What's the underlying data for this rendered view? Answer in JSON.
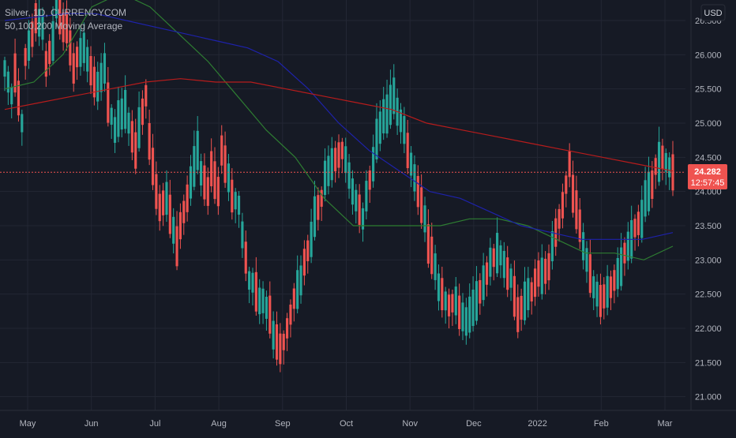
{
  "legend": {
    "symbol_line": "Silver, 1D, CURRENCYCOM",
    "indicator_line": "50,100,200 Moving Average"
  },
  "price_axis": {
    "currency": "USD",
    "ticks": [
      "26.500",
      "26.000",
      "25.500",
      "25.000",
      "24.500",
      "24.000",
      "23.500",
      "23.000",
      "22.500",
      "22.000",
      "21.500",
      "21.000"
    ]
  },
  "last_price": {
    "value": "24.282",
    "countdown": "12:57:45"
  },
  "colors": {
    "background": "#161a25",
    "grid": "#232734",
    "up": "#26a69a",
    "down": "#ef5350",
    "ma50": "#2e7d32",
    "ma100": "#1e22aa",
    "ma200": "#b71c1c",
    "axis_text": "#b2b5be",
    "last_price_label": "#ef5350"
  },
  "chart_data": {
    "type": "candlestick",
    "title": "Silver, 1D, CURRENCYCOM",
    "x_axis_labels": [
      "May",
      "Jun",
      "Jul",
      "Aug",
      "Sep",
      "Oct",
      "Nov",
      "Dec",
      "2022",
      "Feb",
      "Mar"
    ],
    "ylim": [
      20.8,
      26.8
    ],
    "grid": true,
    "anchor_points": [
      [
        26.0,
        25.4
      ],
      [
        26.1,
        25.0
      ],
      [
        25.8,
        26.3
      ],
      [
        26.6,
        26.4
      ],
      [
        25.7,
        26.2
      ],
      [
        26.9,
        26.4
      ],
      [
        26.7,
        25.8
      ],
      [
        25.9,
        26.1
      ],
      [
        26.1,
        25.6
      ],
      [
        25.4,
        25.8
      ],
      [
        25.5,
        24.9
      ],
      [
        25.0,
        25.2
      ],
      [
        25.2,
        24.6
      ],
      [
        24.7,
        25.4
      ],
      [
        25.1,
        24.0
      ],
      [
        23.7,
        23.9
      ],
      [
        23.9,
        23.2
      ],
      [
        23.3,
        23.9
      ],
      [
        23.9,
        24.6
      ],
      [
        24.4,
        24.0
      ],
      [
        24.5,
        24.0
      ],
      [
        24.8,
        24.2
      ],
      [
        24.0,
        23.8
      ],
      [
        23.7,
        22.7
      ],
      [
        22.8,
        22.4
      ],
      [
        22.5,
        22.2
      ],
      [
        22.0,
        21.7
      ],
      [
        21.6,
        22.2
      ],
      [
        22.3,
        22.7
      ],
      [
        22.8,
        23.3
      ],
      [
        23.5,
        23.9
      ],
      [
        24.1,
        24.4
      ],
      [
        24.4,
        24.6
      ],
      [
        24.7,
        24.0
      ],
      [
        24.0,
        23.6
      ],
      [
        23.7,
        24.4
      ],
      [
        24.6,
        25.1
      ],
      [
        25.0,
        25.4
      ],
      [
        25.3,
        24.9
      ],
      [
        24.8,
        24.2
      ],
      [
        24.2,
        23.6
      ],
      [
        23.4,
        22.9
      ],
      [
        22.7,
        22.4
      ],
      [
        22.3,
        22.4
      ],
      [
        22.3,
        22.1
      ],
      [
        22.1,
        22.4
      ],
      [
        22.4,
        22.8
      ],
      [
        22.9,
        23.1
      ],
      [
        23.2,
        22.8
      ],
      [
        23.0,
        22.2
      ],
      [
        22.2,
        22.5
      ],
      [
        22.4,
        22.8
      ],
      [
        22.7,
        22.9
      ],
      [
        23.0,
        23.6
      ],
      [
        23.5,
        24.4
      ],
      [
        24.2,
        23.5
      ],
      [
        23.4,
        22.8
      ],
      [
        22.7,
        22.4
      ],
      [
        22.4,
        22.6
      ],
      [
        22.6,
        22.9
      ],
      [
        23.0,
        23.3
      ],
      [
        23.4,
        23.6
      ],
      [
        23.8,
        24.1
      ],
      [
        24.3,
        24.5
      ],
      [
        24.5,
        24.28
      ]
    ],
    "x_range": [
      "2021-04-29",
      "2022-02-28"
    ],
    "series": [
      {
        "name": "50",
        "type": "line",
        "values": [
          25.5,
          25.6,
          26.0,
          26.7,
          26.9,
          26.7,
          26.3,
          25.9,
          25.4,
          24.9,
          24.5,
          23.9,
          23.5,
          23.5,
          23.5,
          23.5,
          23.6,
          23.6,
          23.5,
          23.3,
          23.1,
          23.1,
          23.0,
          23.2
        ]
      },
      {
        "name": "100",
        "type": "line",
        "values": [
          26.5,
          26.55,
          26.6,
          26.6,
          26.5,
          26.4,
          26.3,
          26.2,
          26.1,
          25.9,
          25.5,
          25.0,
          24.6,
          24.3,
          24.0,
          23.9,
          23.7,
          23.5,
          23.4,
          23.3,
          23.3,
          23.3,
          23.4
        ]
      },
      {
        "name": "200",
        "type": "line",
        "values": [
          25.2,
          25.3,
          25.4,
          25.5,
          25.6,
          25.65,
          25.6,
          25.6,
          25.5,
          25.4,
          25.3,
          25.2,
          25.0,
          24.9,
          24.8,
          24.7,
          24.6,
          24.5,
          24.4,
          24.3
        ]
      }
    ]
  }
}
